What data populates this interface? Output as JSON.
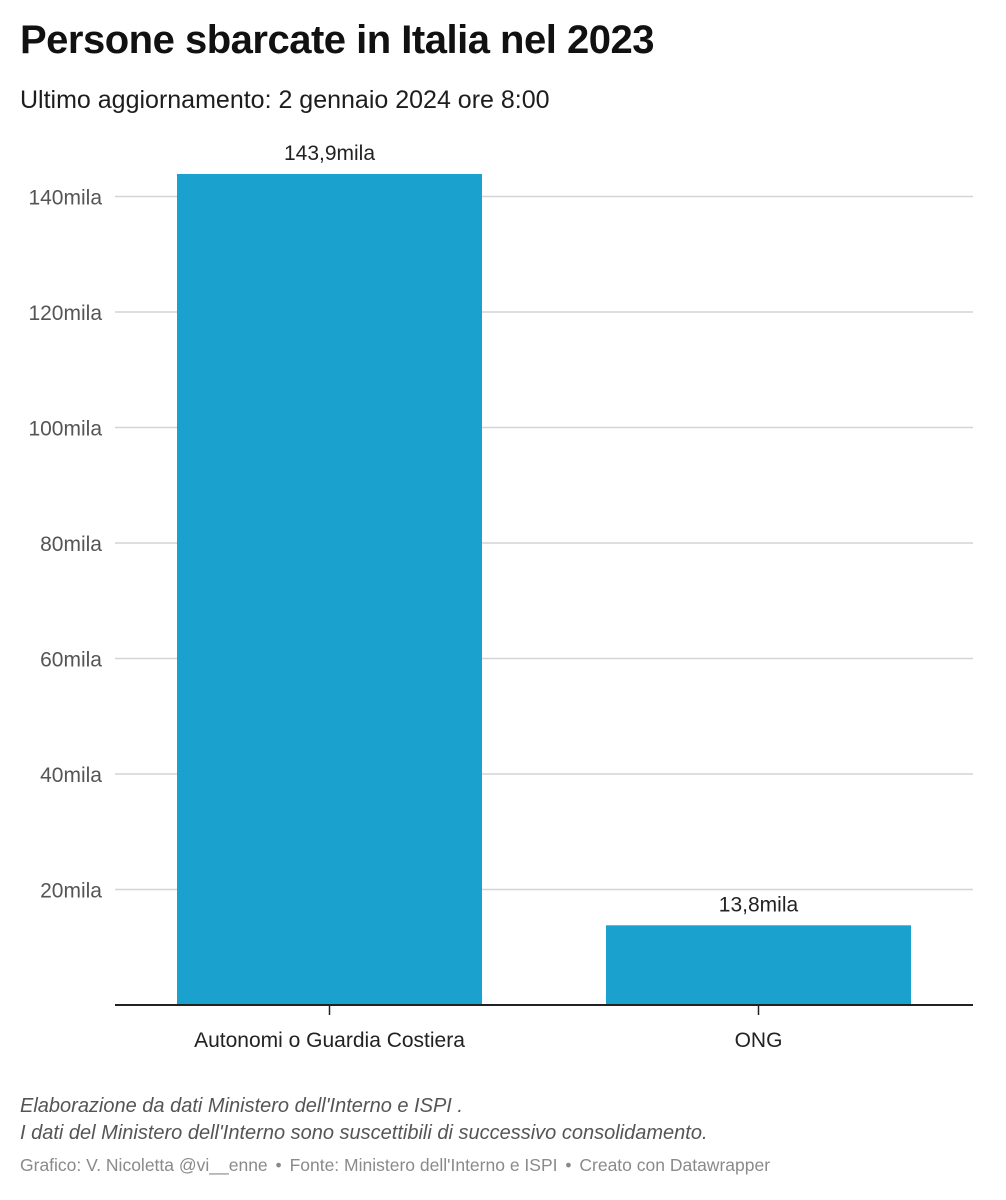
{
  "header": {
    "title": "Persone sbarcate in Italia nel 2023",
    "subtitle": "Ultimo aggiornamento: 2 gennaio 2024 ore 8:00"
  },
  "chart_data": {
    "type": "bar",
    "title": "Persone sbarcate in Italia nel 2023",
    "xlabel": "",
    "ylabel": "",
    "categories": [
      "Autonomi o Guardia Costiera",
      "ONG"
    ],
    "values": [
      143900,
      13800
    ],
    "value_labels": [
      "143,9mila",
      "13,8mila"
    ],
    "ylim": [
      0,
      150000
    ],
    "yticks": [
      20000,
      40000,
      60000,
      80000,
      100000,
      120000,
      140000
    ],
    "ytick_labels": [
      "20mila",
      "40mila",
      "60mila",
      "80mila",
      "100mila",
      "120mila",
      "140mila"
    ],
    "grid": true,
    "bar_color": "#1aa1cd",
    "grid_color": "#d4d4d4",
    "axis_color": "#222222"
  },
  "footer": {
    "note_line1": "Elaborazione da dati Ministero dell'Interno e ISPI .",
    "note_line2": "I dati del Ministero dell'Interno sono suscettibili di successivo consolidamento.",
    "credit_chart": "Grafico: V. Nicoletta @vi__enne",
    "credit_source": "Fonte: Ministero dell'Interno e ISPI",
    "credit_tool": "Creato con Datawrapper",
    "separator": "•"
  }
}
